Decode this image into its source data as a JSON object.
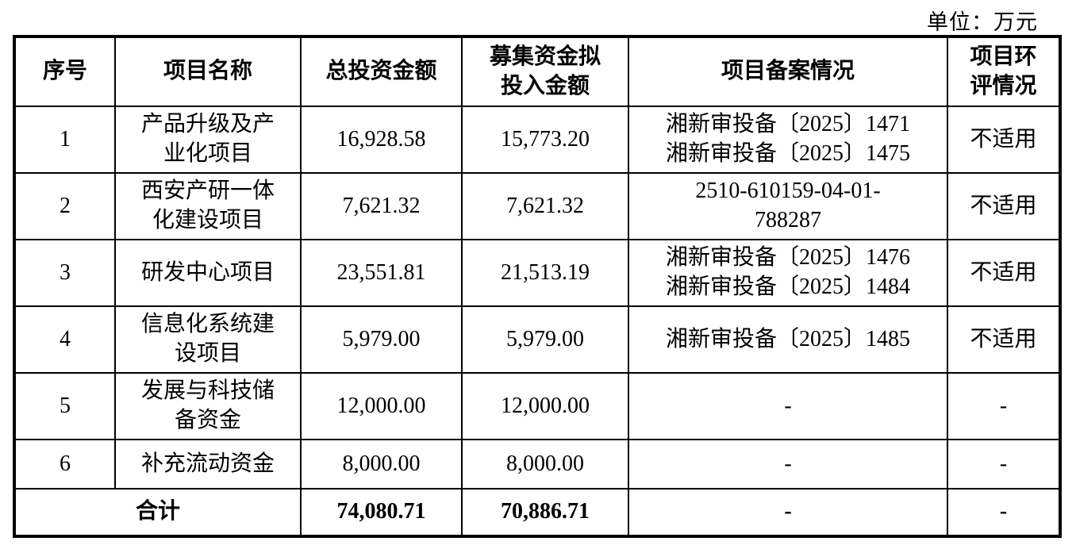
{
  "unit_label": "单位：万元",
  "table": {
    "headers": [
      {
        "label": "序号"
      },
      {
        "label": "项目名称"
      },
      {
        "label": "总投资金额"
      },
      {
        "label": "募集资金拟\n投入金额"
      },
      {
        "label": "项目备案情况"
      },
      {
        "label": "项目环\n评情况"
      }
    ],
    "rows": [
      {
        "no": "1",
        "name": "产品升级及产\n业化项目",
        "total": "16,928.58",
        "raised": "15,773.20",
        "filing": "湘新审投备〔2025〕1471\n湘新审投备〔2025〕1475",
        "filing_align": "left",
        "env": "不适用"
      },
      {
        "no": "2",
        "name": "西安产研一体\n化建设项目",
        "total": "7,621.32",
        "raised": "7,621.32",
        "filing": "2510-610159-04-01-\n788287",
        "filing_align": "center",
        "env": "不适用"
      },
      {
        "no": "3",
        "name": "研发中心项目",
        "total": "23,551.81",
        "raised": "21,513.19",
        "filing": "湘新审投备〔2025〕1476\n湘新审投备〔2025〕1484",
        "filing_align": "left",
        "env": "不适用"
      },
      {
        "no": "4",
        "name": "信息化系统建\n设项目",
        "total": "5,979.00",
        "raised": "5,979.00",
        "filing": "湘新审投备〔2025〕1485",
        "filing_align": "left",
        "env": "不适用"
      },
      {
        "no": "5",
        "name": "发展与科技储\n备资金",
        "total": "12,000.00",
        "raised": "12,000.00",
        "filing": "-",
        "filing_align": "center",
        "env": "-"
      },
      {
        "no": "6",
        "name": "补充流动资金",
        "total": "8,000.00",
        "raised": "8,000.00",
        "filing": "-",
        "filing_align": "center",
        "env": "-"
      }
    ],
    "total_row": {
      "label": "合计",
      "total": "74,080.71",
      "raised": "70,886.71",
      "filing": "-",
      "env": "-"
    }
  }
}
